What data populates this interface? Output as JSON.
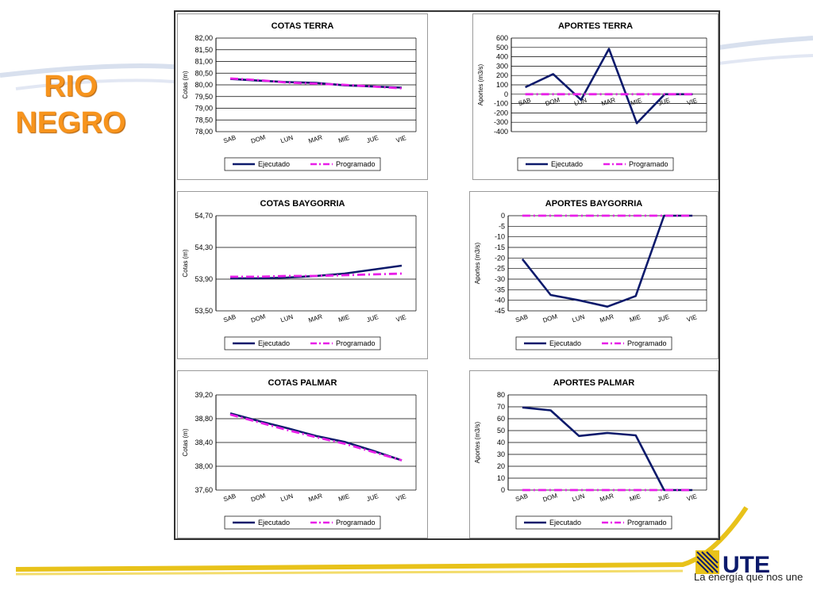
{
  "slide": {
    "title_line1": "RIO",
    "title_line2": "NEGRO",
    "brand_logo_text": "UTE",
    "brand_tagline": "La energía que nos une",
    "title_color": "#f7941d"
  },
  "colors": {
    "ejecutado": "#0c1a6b",
    "programado": "#e81ee8",
    "grid": "#000000"
  },
  "chart_data": [
    {
      "id": "cotas-terra",
      "type": "line",
      "title": "COTAS TERRA",
      "ylabel": "Cotas (m)",
      "categories": [
        "SAB",
        "DOM",
        "LUN",
        "MAR",
        "MIE",
        "JUE",
        "VIE"
      ],
      "ylim": [
        78.0,
        82.0
      ],
      "yticks": [
        "78,00",
        "78,50",
        "79,00",
        "79,50",
        "80,00",
        "80,50",
        "81,00",
        "81,50",
        "82,00"
      ],
      "series": [
        {
          "name": "Ejecutado",
          "values": [
            80.25,
            80.18,
            80.12,
            80.08,
            79.98,
            79.93,
            79.88
          ]
        },
        {
          "name": "Programado",
          "values": [
            80.27,
            80.2,
            80.1,
            80.05,
            80.0,
            79.93,
            79.85
          ]
        }
      ]
    },
    {
      "id": "aportes-terra",
      "type": "line",
      "title": "APORTES TERRA",
      "ylabel": "Aportes (m3/s)",
      "categories": [
        "SAB",
        "DOM",
        "LUN",
        "MAR",
        "MIE",
        "JUE",
        "VIE"
      ],
      "ylim": [
        -400,
        600
      ],
      "yticks": [
        "-400",
        "-300",
        "-200",
        "-100",
        "0",
        "100",
        "200",
        "300",
        "400",
        "500",
        "600"
      ],
      "series": [
        {
          "name": "Ejecutado",
          "values": [
            75,
            215,
            -60,
            485,
            -310,
            0,
            0
          ]
        },
        {
          "name": "Programado",
          "values": [
            0,
            0,
            0,
            0,
            0,
            0,
            0
          ]
        }
      ]
    },
    {
      "id": "cotas-baygorria",
      "type": "line",
      "title": "COTAS BAYGORRIA",
      "ylabel": "Cotas (m)",
      "categories": [
        "SAB",
        "DOM",
        "LUN",
        "MAR",
        "MIE",
        "JUE",
        "VIE"
      ],
      "ylim": [
        53.5,
        54.7
      ],
      "yticks": [
        "53,50",
        "53,90",
        "54,30",
        "54,70"
      ],
      "series": [
        {
          "name": "Ejecutado",
          "values": [
            53.91,
            53.91,
            53.92,
            53.94,
            53.97,
            54.02,
            54.07
          ]
        },
        {
          "name": "Programado",
          "values": [
            53.93,
            53.93,
            53.94,
            53.94,
            53.95,
            53.96,
            53.97
          ]
        }
      ]
    },
    {
      "id": "aportes-baygorria",
      "type": "line",
      "title": "APORTES BAYGORRIA",
      "ylabel": "Aportes (m3/s)",
      "categories": [
        "SAB",
        "DOM",
        "LUN",
        "MAR",
        "MIE",
        "JUE",
        "VIE"
      ],
      "ylim": [
        -45,
        0
      ],
      "yticks": [
        "-45",
        "-40",
        "-35",
        "-30",
        "-25",
        "-20",
        "-15",
        "-10",
        "-5",
        "0"
      ],
      "series": [
        {
          "name": "Ejecutado",
          "values": [
            -20.5,
            -37.5,
            -40,
            -43,
            -38,
            0,
            0
          ]
        },
        {
          "name": "Programado",
          "values": [
            0,
            0,
            0,
            0,
            0,
            0,
            0
          ]
        }
      ]
    },
    {
      "id": "cotas-palmar",
      "type": "line",
      "title": "COTAS PALMAR",
      "ylabel": "Cotas (m)",
      "categories": [
        "SAB",
        "DOM",
        "LUN",
        "MAR",
        "MIE",
        "JUE",
        "VIE"
      ],
      "ylim": [
        37.6,
        39.2
      ],
      "yticks": [
        "37,60",
        "38,00",
        "38,40",
        "38,80",
        "39,20"
      ],
      "series": [
        {
          "name": "Ejecutado",
          "values": [
            38.89,
            38.76,
            38.64,
            38.51,
            38.41,
            38.26,
            38.1
          ]
        },
        {
          "name": "Programado",
          "values": [
            38.87,
            38.74,
            38.61,
            38.49,
            38.38,
            38.24,
            38.1
          ]
        }
      ]
    },
    {
      "id": "aportes-palmar",
      "type": "line",
      "title": "APORTES PALMAR",
      "ylabel": "Aportes (m3/s)",
      "categories": [
        "SAB",
        "DOM",
        "LUN",
        "MAR",
        "MIE",
        "JUE",
        "VIE"
      ],
      "ylim": [
        0,
        80
      ],
      "yticks": [
        "0",
        "10",
        "20",
        "30",
        "40",
        "50",
        "60",
        "70",
        "80"
      ],
      "series": [
        {
          "name": "Ejecutado",
          "values": [
            69.5,
            67,
            45.5,
            48,
            46,
            0,
            0
          ]
        },
        {
          "name": "Programado",
          "values": [
            0,
            0,
            0,
            0,
            0,
            0,
            0
          ]
        }
      ]
    }
  ]
}
